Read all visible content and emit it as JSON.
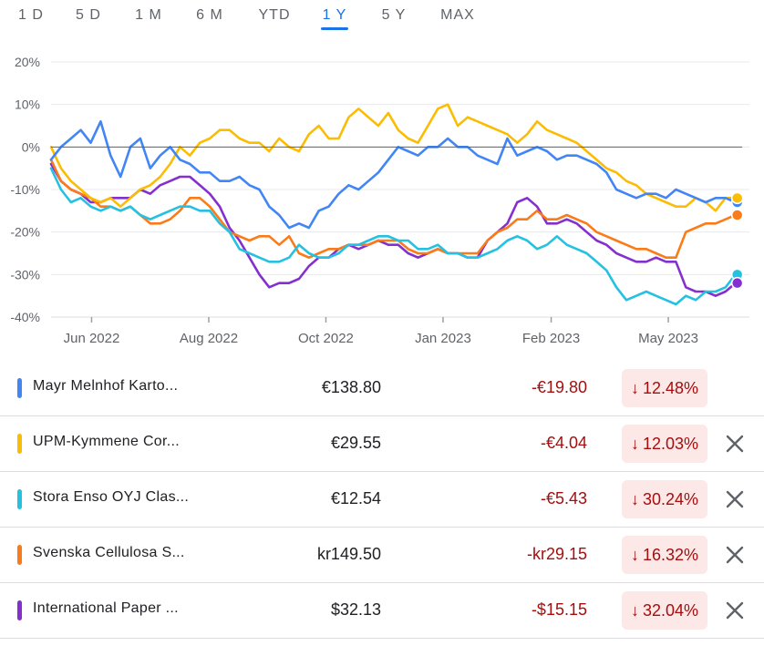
{
  "tabs": [
    "1 D",
    "5 D",
    "1 M",
    "6 M",
    "YTD",
    "1 Y",
    "5 Y",
    "MAX"
  ],
  "active_tab": "1 Y",
  "chart_data": {
    "type": "line",
    "y_tick_labels": [
      "20%",
      "10%",
      "0%",
      "-10%",
      "-20%",
      "-30%",
      "-40%"
    ],
    "y_ticks": [
      20,
      10,
      0,
      -10,
      -20,
      -30,
      -40
    ],
    "ylim": [
      -40,
      20
    ],
    "x_tick_labels": [
      "Jun 2022",
      "Aug 2022",
      "Oct 2022",
      "Jan 2023",
      "Feb 2023",
      "May 2023"
    ],
    "x_ticks": [
      9,
      35,
      61,
      87,
      111,
      137
    ],
    "xlim": [
      0,
      155
    ],
    "baseline": 0,
    "series": [
      {
        "name": "Mayr Melnhof Karto...",
        "color": "#4285f4",
        "values": [
          -3,
          0,
          2,
          4,
          1,
          6,
          -2,
          -7,
          0,
          2,
          -5,
          -2,
          0,
          -3,
          -4,
          -6,
          -6,
          -8,
          -8,
          -7,
          -9,
          -10,
          -14,
          -16,
          -19,
          -18,
          -19,
          -15,
          -14,
          -11,
          -9,
          -10,
          -8,
          -6,
          -3,
          0,
          -1,
          -2,
          0,
          0,
          2,
          0,
          0,
          -2,
          -3,
          -4,
          2,
          -2,
          -1,
          0,
          -1,
          -3,
          -2,
          -2,
          -3,
          -4,
          -6,
          -10,
          -11,
          -12,
          -11,
          -11,
          -12,
          -10,
          -11,
          -12,
          -13,
          -12,
          -12,
          -13
        ]
      },
      {
        "name": "UPM-Kymmene Cor...",
        "color": "#fbbc04",
        "values": [
          0,
          -5,
          -8,
          -10,
          -12,
          -13,
          -12,
          -14,
          -12,
          -10,
          -9,
          -7,
          -4,
          0,
          -2,
          1,
          2,
          4,
          4,
          2,
          1,
          1,
          -1,
          2,
          0,
          -1,
          3,
          5,
          2,
          2,
          7,
          9,
          7,
          5,
          8,
          4,
          2,
          1,
          5,
          9,
          10,
          5,
          7,
          6,
          5,
          4,
          3,
          1,
          3,
          6,
          4,
          3,
          2,
          1,
          -1,
          -3,
          -5,
          -6,
          -8,
          -9,
          -11,
          -12,
          -13,
          -14,
          -14,
          -12,
          -13,
          -15,
          -12,
          -12
        ]
      },
      {
        "name": "Stora Enso OYJ Clas...",
        "color": "#24c1e0",
        "values": [
          -5,
          -10,
          -13,
          -12,
          -14,
          -15,
          -14,
          -15,
          -14,
          -16,
          -17,
          -16,
          -15,
          -14,
          -14,
          -15,
          -15,
          -18,
          -20,
          -24,
          -25,
          -26,
          -27,
          -27,
          -26,
          -23,
          -25,
          -26,
          -26,
          -25,
          -23,
          -23,
          -22,
          -21,
          -21,
          -22,
          -22,
          -24,
          -24,
          -23,
          -25,
          -25,
          -26,
          -26,
          -25,
          -24,
          -22,
          -21,
          -22,
          -24,
          -23,
          -21,
          -23,
          -24,
          -25,
          -27,
          -29,
          -33,
          -36,
          -35,
          -34,
          -35,
          -36,
          -37,
          -35,
          -36,
          -34,
          -34,
          -33,
          -30
        ]
      },
      {
        "name": "Svenska Cellulosa S...",
        "color": "#fa7b17",
        "values": [
          -3,
          -8,
          -10,
          -11,
          -12,
          -14,
          -14,
          -15,
          -14,
          -16,
          -18,
          -18,
          -17,
          -15,
          -12,
          -12,
          -14,
          -17,
          -20,
          -21,
          -22,
          -21,
          -21,
          -23,
          -21,
          -25,
          -26,
          -25,
          -24,
          -24,
          -23,
          -23,
          -23,
          -22,
          -22,
          -22,
          -24,
          -25,
          -25,
          -24,
          -25,
          -25,
          -25,
          -25,
          -22,
          -20,
          -19,
          -17,
          -17,
          -15,
          -17,
          -17,
          -16,
          -17,
          -18,
          -20,
          -21,
          -22,
          -23,
          -24,
          -24,
          -25,
          -26,
          -26,
          -20,
          -19,
          -18,
          -18,
          -17,
          -16
        ]
      },
      {
        "name": "International Paper ...",
        "color": "#8430ce",
        "values": [
          -4,
          -8,
          -10,
          -11,
          -13,
          -13,
          -12,
          -12,
          -12,
          -10,
          -11,
          -9,
          -8,
          -7,
          -7,
          -9,
          -11,
          -14,
          -19,
          -22,
          -26,
          -30,
          -33,
          -32,
          -32,
          -31,
          -28,
          -26,
          -26,
          -24,
          -23,
          -24,
          -23,
          -22,
          -23,
          -23,
          -25,
          -26,
          -25,
          -24,
          -25,
          -25,
          -26,
          -26,
          -22,
          -20,
          -18,
          -13,
          -12,
          -14,
          -18,
          -18,
          -17,
          -18,
          -20,
          -22,
          -23,
          -25,
          -26,
          -27,
          -27,
          -26,
          -27,
          -27,
          -33,
          -34,
          -34,
          -35,
          -34,
          -32
        ]
      }
    ]
  },
  "rows": [
    {
      "name": "Mayr Melnhof Karto...",
      "color": "#4285f4",
      "price": "€138.80",
      "change": "-€19.80",
      "pct": "12.48%",
      "arrow": "↓",
      "closable": false
    },
    {
      "name": "UPM-Kymmene Cor...",
      "color": "#fbbc04",
      "price": "€29.55",
      "change": "-€4.04",
      "pct": "12.03%",
      "arrow": "↓",
      "closable": true
    },
    {
      "name": "Stora Enso OYJ Clas...",
      "color": "#24c1e0",
      "price": "€12.54",
      "change": "-€5.43",
      "pct": "30.24%",
      "arrow": "↓",
      "closable": true
    },
    {
      "name": "Svenska Cellulosa S...",
      "color": "#fa7b17",
      "price": "kr149.50",
      "change": "-kr29.15",
      "pct": "16.32%",
      "arrow": "↓",
      "closable": true
    },
    {
      "name": "International Paper ...",
      "color": "#8430ce",
      "price": "$32.13",
      "change": "-$15.15",
      "pct": "32.04%",
      "arrow": "↓",
      "closable": true
    }
  ],
  "colors": {
    "accent": "#1a73e8",
    "negative": "#a50e0e",
    "negative_bg": "#fce8e6"
  },
  "icons": {
    "close": "close-icon",
    "arrow": "arrow-down-icon"
  }
}
